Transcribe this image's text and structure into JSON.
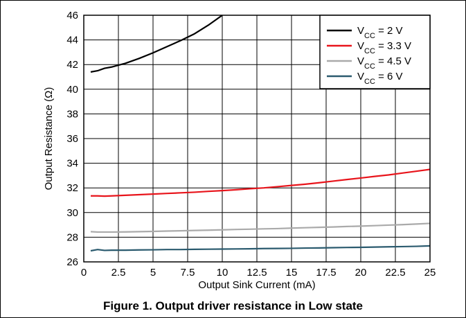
{
  "caption": "Figure 1. Output driver resistance in Low state",
  "chart_data": {
    "type": "line",
    "title": "",
    "xlabel": "Output Sink Current (mA)",
    "ylabel": "Output Resistance (Ω)",
    "xlim": [
      0,
      25
    ],
    "ylim": [
      26,
      46
    ],
    "xticks": [
      "0",
      "2.5",
      "5",
      "7.5",
      "10",
      "12.5",
      "15",
      "17.5",
      "20",
      "22.5",
      "25"
    ],
    "yticks": [
      "26",
      "28",
      "30",
      "32",
      "34",
      "36",
      "38",
      "40",
      "42",
      "44",
      "46"
    ],
    "grid": true,
    "legend_position": "top-right",
    "series": [
      {
        "name": "VCC = 2 V",
        "legend_main": "V",
        "legend_sub": "CC",
        "legend_rest": " = 2 V",
        "color": "#000000",
        "x": [
          0.5,
          1,
          1.5,
          2,
          2.5,
          3,
          4,
          5,
          6,
          7,
          8,
          9,
          10
        ],
        "y": [
          41.4,
          41.5,
          41.7,
          41.8,
          41.95,
          42.1,
          42.5,
          42.95,
          43.45,
          43.95,
          44.5,
          45.2,
          46.0
        ]
      },
      {
        "name": "VCC = 3.3 V",
        "legend_main": "V",
        "legend_sub": "CC",
        "legend_rest": " = 3.3 V",
        "color": "#e8141b",
        "x": [
          0.5,
          1,
          1.5,
          2,
          3,
          4,
          5,
          6,
          7,
          8,
          9,
          10,
          11,
          12,
          13,
          14,
          15,
          16,
          17,
          18,
          19,
          20,
          21,
          22,
          23,
          24,
          25
        ],
        "y": [
          31.35,
          31.35,
          31.33,
          31.35,
          31.4,
          31.45,
          31.5,
          31.55,
          31.6,
          31.65,
          31.72,
          31.78,
          31.85,
          31.93,
          32.0,
          32.1,
          32.2,
          32.3,
          32.42,
          32.55,
          32.68,
          32.8,
          32.93,
          33.05,
          33.2,
          33.35,
          33.5
        ]
      },
      {
        "name": "VCC = 4.5 V",
        "legend_main": "V",
        "legend_sub": "CC",
        "legend_rest": " = 4.5 V",
        "color": "#aaaaaa",
        "x": [
          0.5,
          1,
          2,
          3,
          4,
          5,
          6,
          7,
          8,
          9,
          10,
          11,
          12,
          13,
          14,
          15,
          16,
          17,
          18,
          19,
          20,
          21,
          22,
          23,
          24,
          25
        ],
        "y": [
          28.45,
          28.42,
          28.42,
          28.43,
          28.45,
          28.47,
          28.5,
          28.52,
          28.55,
          28.57,
          28.6,
          28.63,
          28.65,
          28.68,
          28.7,
          28.74,
          28.77,
          28.8,
          28.83,
          28.87,
          28.9,
          28.94,
          28.98,
          29.02,
          29.07,
          29.12
        ]
      },
      {
        "name": "VCC = 6 V",
        "legend_main": "V",
        "legend_sub": "CC",
        "legend_rest": " = 6 V",
        "color": "#2a5a6e",
        "x": [
          0.5,
          1,
          1.5,
          2,
          3,
          4,
          5,
          6,
          7,
          8,
          9,
          10,
          11,
          12,
          13,
          14,
          15,
          16,
          17,
          18,
          19,
          20,
          21,
          22,
          23,
          24,
          25
        ],
        "y": [
          26.9,
          27.0,
          26.93,
          26.95,
          26.95,
          26.97,
          26.98,
          27.0,
          27.0,
          27.02,
          27.03,
          27.04,
          27.05,
          27.06,
          27.08,
          27.09,
          27.1,
          27.12,
          27.13,
          27.15,
          27.17,
          27.18,
          27.2,
          27.22,
          27.24,
          27.26,
          27.3
        ]
      }
    ]
  }
}
